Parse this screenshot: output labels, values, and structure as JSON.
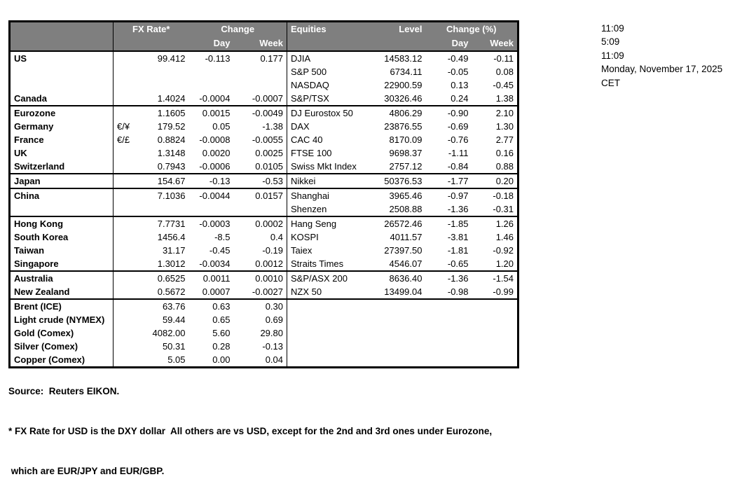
{
  "colors": {
    "header_bg": "#7f7f7f",
    "header_text": "#ffffff",
    "border": "#000000"
  },
  "clock": {
    "lines": [
      "11:09",
      "5:09",
      "11:09",
      "Monday, November 17, 2025",
      "CET"
    ]
  },
  "table": {
    "fx_header": {
      "rate": "FX Rate*",
      "change": "Change",
      "day": "Day",
      "week": "Week"
    },
    "eq_header": {
      "name": "Equities",
      "level": "Level",
      "change": "Change (%)",
      "day": "Day",
      "week": "Week"
    },
    "rows": [
      {
        "region": "US",
        "pair": "",
        "rate": "99.412",
        "day": "-0.113",
        "week": "0.177",
        "equity": "DJIA",
        "level": "14583.12",
        "eq_day": "-0.49",
        "eq_week": "-0.11",
        "indent": false,
        "section": false
      },
      {
        "region": "",
        "pair": "",
        "rate": "",
        "day": "",
        "week": "",
        "equity": "S&P 500",
        "level": "6734.11",
        "eq_day": "-0.05",
        "eq_week": "0.08",
        "indent": false,
        "section": false
      },
      {
        "region": "",
        "pair": "",
        "rate": "",
        "day": "",
        "week": "",
        "equity": "NASDAQ",
        "level": "22900.59",
        "eq_day": "0.13",
        "eq_week": "-0.45",
        "indent": false,
        "section": false
      },
      {
        "region": "Canada",
        "pair": "",
        "rate": "1.4024",
        "day": "-0.0004",
        "week": "-0.0007",
        "equity": "S&P/TSX",
        "level": "30326.46",
        "eq_day": "0.24",
        "eq_week": "1.38",
        "indent": false,
        "section": false
      },
      {
        "region": "Eurozone",
        "pair": "",
        "rate": "1.1605",
        "day": "0.0015",
        "week": "-0.0049",
        "equity": "DJ Eurostox 50",
        "level": "4806.29",
        "eq_day": "-0.90",
        "eq_week": "2.10",
        "indent": false,
        "section": true
      },
      {
        "region": "Germany",
        "pair": "€/¥",
        "rate": "179.52",
        "day": "0.05",
        "week": "-1.38",
        "equity": "DAX",
        "level": "23876.55",
        "eq_day": "-0.69",
        "eq_week": "1.30",
        "indent": true,
        "section": false
      },
      {
        "region": "France",
        "pair": "€/£",
        "rate": "0.8824",
        "day": "-0.0008",
        "week": "-0.0055",
        "equity": "CAC 40",
        "level": "8170.09",
        "eq_day": "-0.76",
        "eq_week": "2.77",
        "indent": true,
        "section": false
      },
      {
        "region": "UK",
        "pair": "",
        "rate": "1.3148",
        "day": "0.0020",
        "week": "0.0025",
        "equity": "FTSE 100",
        "level": "9698.37",
        "eq_day": "-1.11",
        "eq_week": "0.16",
        "indent": false,
        "section": false
      },
      {
        "region": "Switzerland",
        "pair": "",
        "rate": "0.7943",
        "day": "-0.0006",
        "week": "0.0105",
        "equity": "Swiss Mkt Index",
        "level": "2757.12",
        "eq_day": "-0.84",
        "eq_week": "0.88",
        "indent": false,
        "section": false
      },
      {
        "region": "Japan",
        "pair": "",
        "rate": "154.67",
        "day": "-0.13",
        "week": "-0.53",
        "equity": "Nikkei",
        "level": "50376.53",
        "eq_day": "-1.77",
        "eq_week": "0.20",
        "indent": false,
        "section": true
      },
      {
        "region": "China",
        "pair": "",
        "rate": "7.1036",
        "day": "-0.0044",
        "week": "0.0157",
        "equity": "Shanghai",
        "level": "3965.46",
        "eq_day": "-0.97",
        "eq_week": "-0.18",
        "indent": false,
        "section": true
      },
      {
        "region": "",
        "pair": "",
        "rate": "",
        "day": "",
        "week": "",
        "equity": "Shenzen",
        "level": "2508.88",
        "eq_day": "-1.36",
        "eq_week": "-0.31",
        "indent": false,
        "section": false
      },
      {
        "region": "Hong Kong",
        "pair": "",
        "rate": "7.7731",
        "day": "-0.0003",
        "week": "0.0002",
        "equity": "Hang Seng",
        "level": "26572.46",
        "eq_day": "-1.85",
        "eq_week": "1.26",
        "indent": false,
        "section": true
      },
      {
        "region": "South Korea",
        "pair": "",
        "rate": "1456.4",
        "day": "-8.5",
        "week": "0.4",
        "equity": "KOSPI",
        "level": "4011.57",
        "eq_day": "-3.81",
        "eq_week": "1.46",
        "indent": false,
        "section": false
      },
      {
        "region": "Taiwan",
        "pair": "",
        "rate": "31.17",
        "day": "-0.45",
        "week": "-0.19",
        "equity": "Taiex",
        "level": "27397.50",
        "eq_day": "-1.81",
        "eq_week": "-0.92",
        "indent": false,
        "section": false
      },
      {
        "region": "Singapore",
        "pair": "",
        "rate": "1.3012",
        "day": "-0.0034",
        "week": "0.0012",
        "equity": "Straits Times",
        "level": "4546.07",
        "eq_day": "-0.65",
        "eq_week": "1.20",
        "indent": false,
        "section": false
      },
      {
        "region": "Australia",
        "pair": "",
        "rate": "0.6525",
        "day": "0.0011",
        "week": "0.0010",
        "equity": "S&P/ASX  200",
        "level": "8636.40",
        "eq_day": "-1.36",
        "eq_week": "-1.54",
        "indent": false,
        "section": true
      },
      {
        "region": "New Zealand",
        "pair": "",
        "rate": "0.5672",
        "day": "0.0007",
        "week": "-0.0027",
        "equity": "NZX 50",
        "level": "13499.04",
        "eq_day": "-0.98",
        "eq_week": "-0.99",
        "indent": false,
        "section": false
      },
      {
        "region": "Brent (ICE)",
        "pair": "",
        "rate": "63.76",
        "day": "0.63",
        "week": "0.30",
        "equity": "",
        "level": "",
        "eq_day": "",
        "eq_week": "",
        "indent": false,
        "section": true
      },
      {
        "region": "Light crude (NYMEX)",
        "pair": "",
        "rate": "59.44",
        "day": "0.65",
        "week": "0.69",
        "equity": "",
        "level": "",
        "eq_day": "",
        "eq_week": "",
        "indent": false,
        "section": false
      },
      {
        "region": "Gold (Comex)",
        "pair": "",
        "rate": "4082.00",
        "day": "5.60",
        "week": "29.80",
        "equity": "",
        "level": "",
        "eq_day": "",
        "eq_week": "",
        "indent": false,
        "section": false
      },
      {
        "region": "Silver (Comex)",
        "pair": "",
        "rate": "50.31",
        "day": "0.28",
        "week": "-0.13",
        "equity": "",
        "level": "",
        "eq_day": "",
        "eq_week": "",
        "indent": false,
        "section": false
      },
      {
        "region": "Copper (Comex)",
        "pair": "",
        "rate": "5.05",
        "day": "0.00",
        "week": "0.04",
        "equity": "",
        "level": "",
        "eq_day": "",
        "eq_week": "",
        "indent": false,
        "section": false
      }
    ]
  },
  "footer": {
    "lines": [
      "Source:  Reuters EIKON.",
      "* FX Rate for USD is the DXY dollar  All others are vs USD, except for the 2nd and 3rd ones under Eurozone,",
      " which are EUR/JPY and EUR/GBP."
    ]
  }
}
